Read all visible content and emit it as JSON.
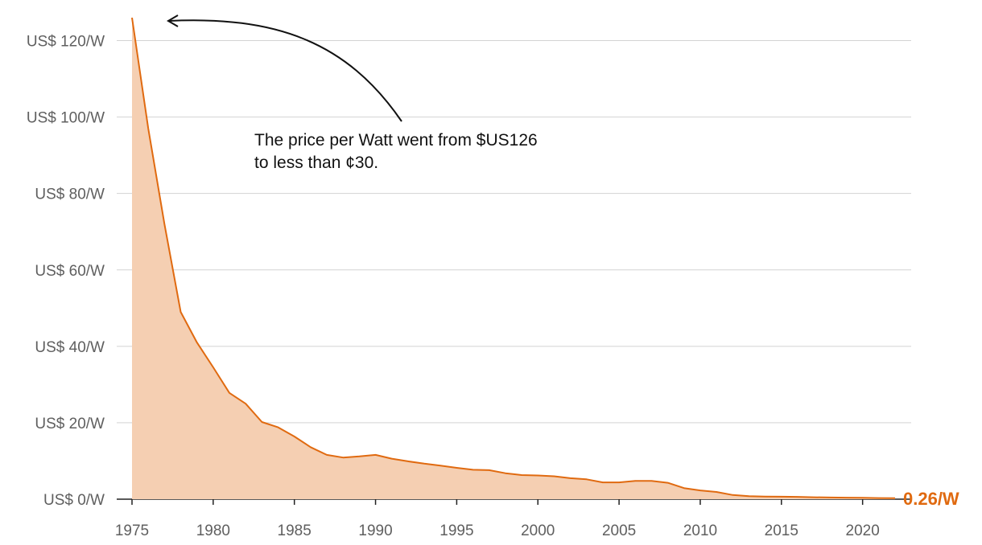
{
  "colors": {
    "line": "#e06a10",
    "area": "#f5cfb2",
    "grid": "#d3d3d3",
    "tick_text": "#5f5f5f",
    "annotation": "#111111"
  },
  "chart_data": {
    "type": "area",
    "title": "",
    "xlabel": "",
    "ylabel": "",
    "x_ticks": [
      "1975",
      "1980",
      "1985",
      "1990",
      "1995",
      "2000",
      "2005",
      "2010",
      "2015",
      "2020"
    ],
    "y_ticks": [
      "US$ 0/W",
      "US$ 20/W",
      "US$ 40/W",
      "US$ 60/W",
      "US$ 80/W",
      "US$ 100/W",
      "US$ 120/W"
    ],
    "xlim": [
      1975,
      2022
    ],
    "ylim": [
      0,
      126
    ],
    "grid": true,
    "series": [
      {
        "x": [
          1975,
          1976,
          1977,
          1978,
          1979,
          1980,
          1981,
          1982,
          1983,
          1984,
          1985,
          1986,
          1987,
          1988,
          1989,
          1990,
          1991,
          1992,
          1993,
          1994,
          1995,
          1996,
          1997,
          1998,
          1999,
          2000,
          2001,
          2002,
          2003,
          2004,
          2005,
          2006,
          2007,
          2008,
          2009,
          2010,
          2011,
          2012,
          2013,
          2014,
          2015,
          2016,
          2017,
          2018,
          2019,
          2020,
          2021,
          2022
        ],
        "y": [
          126,
          97,
          72,
          49,
          41,
          34.5,
          27.8,
          25,
          20.2,
          18.8,
          16.4,
          13.6,
          11.6,
          10.9,
          11.2,
          11.6,
          10.6,
          9.9,
          9.3,
          8.8,
          8.2,
          7.7,
          7.6,
          6.8,
          6.3,
          6.2,
          6.0,
          5.5,
          5.2,
          4.4,
          4.4,
          4.8,
          4.8,
          4.3,
          2.9,
          2.3,
          1.9,
          1.1,
          0.8,
          0.7,
          0.65,
          0.6,
          0.5,
          0.45,
          0.4,
          0.35,
          0.3,
          0.26
        ]
      }
    ],
    "annotation": {
      "line1": "The price per Watt went from $US126",
      "line2": "to less than ¢30."
    },
    "end_label": "0.26/W"
  }
}
